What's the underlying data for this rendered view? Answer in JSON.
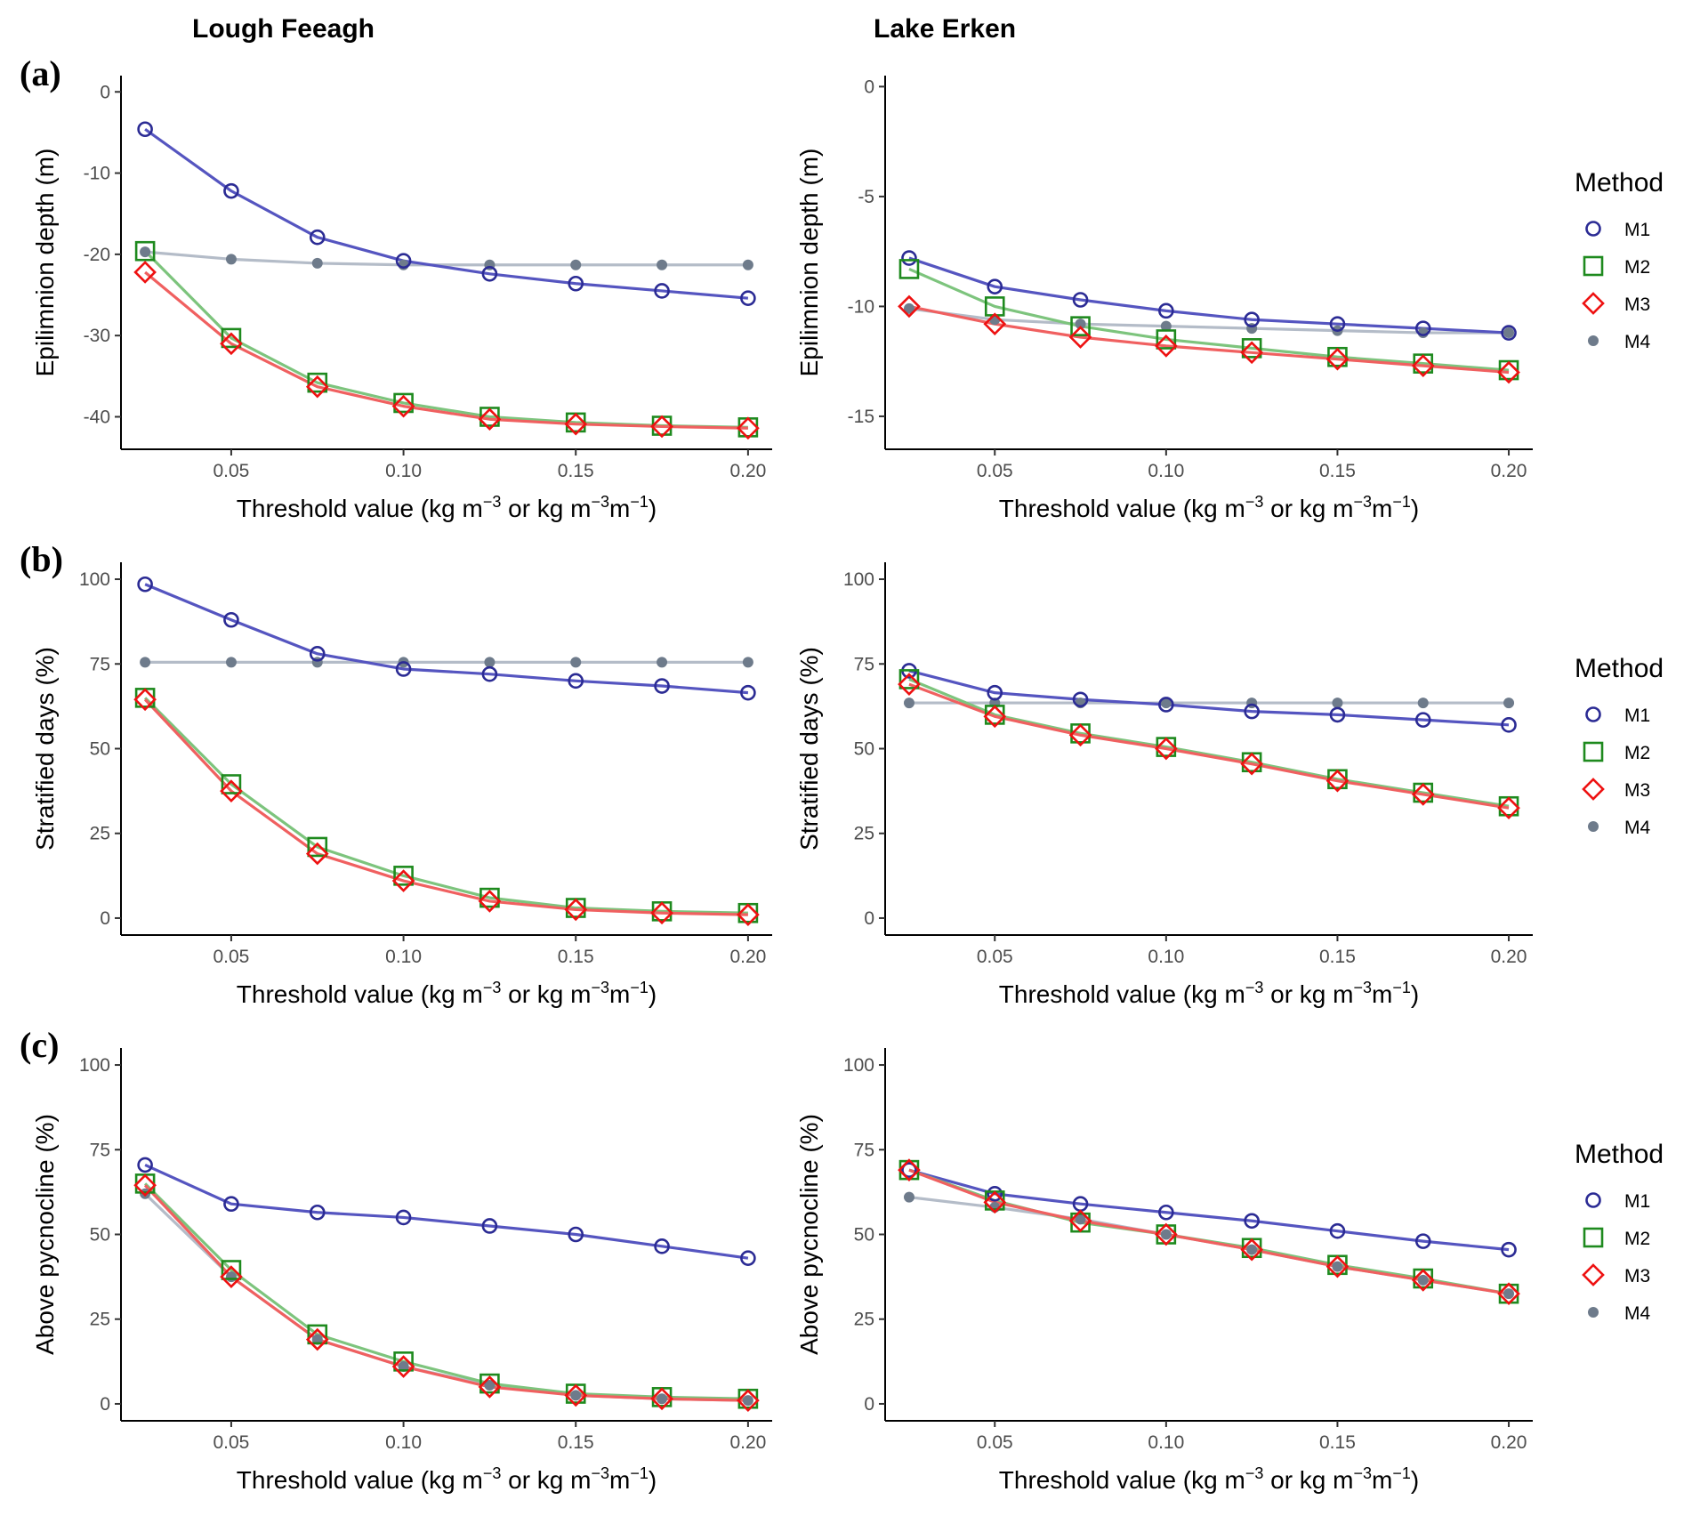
{
  "figure": {
    "column_titles": [
      "Lough Feeagh",
      "Lake Erken"
    ],
    "row_labels": [
      "(a)",
      "(b)",
      "(c)"
    ],
    "legend": {
      "title": "Method",
      "entries": [
        "M1",
        "M2",
        "M3",
        "M4"
      ]
    }
  },
  "colors": {
    "M1": "#2b2b94",
    "M1_line": "#5555c0",
    "M2": "#1e8a1e",
    "M2_line": "#7dc47d",
    "M3": "#ee1111",
    "M3_line": "#f06060",
    "M4": "#6e7b8b",
    "M4_line": "#b4bcc8"
  },
  "chart_data": [
    {
      "id": "a-feeagh",
      "type": "line",
      "xlabel": "Threshold value (kg m⁻³ or kg m⁻³m⁻¹)",
      "xlabel_parts": [
        "Threshold value (kg m",
        "−3",
        " or kg m",
        "−3",
        "m",
        "−1",
        ")"
      ],
      "ylabel": "Epilimnion depth (m)",
      "xlim": [
        0.018,
        0.207
      ],
      "ylim": [
        -44,
        2
      ],
      "xticks": [
        0.05,
        0.1,
        0.15,
        0.2
      ],
      "xtick_labels": [
        "0.05",
        "0.10",
        "0.15",
        "0.20"
      ],
      "yticks": [
        0,
        -10,
        -20,
        -30,
        -40
      ],
      "ytick_labels": [
        "0",
        "-10",
        "-20",
        "-30",
        "-40"
      ],
      "x": [
        0.025,
        0.05,
        0.075,
        0.1,
        0.125,
        0.15,
        0.175,
        0.2
      ],
      "series": [
        {
          "name": "M1",
          "values": [
            -4.6,
            -12.2,
            -17.9,
            -20.8,
            -22.4,
            -23.6,
            -24.5,
            -25.4
          ]
        },
        {
          "name": "M2",
          "values": [
            -19.6,
            -30.3,
            -35.8,
            -38.3,
            -40.0,
            -40.7,
            -41.1,
            -41.3
          ]
        },
        {
          "name": "M3",
          "values": [
            -22.2,
            -31.0,
            -36.3,
            -38.7,
            -40.3,
            -40.9,
            -41.2,
            -41.4
          ]
        },
        {
          "name": "M4",
          "values": [
            -19.7,
            -20.6,
            -21.1,
            -21.3,
            -21.3,
            -21.3,
            -21.3,
            -21.3
          ]
        }
      ]
    },
    {
      "id": "a-erken",
      "type": "line",
      "xlabel": "Threshold value (kg m⁻³ or kg m⁻³m⁻¹)",
      "xlabel_parts": [
        "Threshold value (kg m",
        "−3",
        " or kg m",
        "−3",
        "m",
        "−1",
        ")"
      ],
      "ylabel": "Epilimnion depth (m)",
      "xlim": [
        0.018,
        0.207
      ],
      "ylim": [
        -16.5,
        0.5
      ],
      "xticks": [
        0.05,
        0.1,
        0.15,
        0.2
      ],
      "xtick_labels": [
        "0.05",
        "0.10",
        "0.15",
        "0.20"
      ],
      "yticks": [
        0,
        -5,
        -10,
        -15
      ],
      "ytick_labels": [
        "0",
        "-5",
        "-10",
        "-15"
      ],
      "x": [
        0.025,
        0.05,
        0.075,
        0.1,
        0.125,
        0.15,
        0.175,
        0.2
      ],
      "series": [
        {
          "name": "M1",
          "values": [
            -7.8,
            -9.1,
            -9.7,
            -10.2,
            -10.6,
            -10.8,
            -11.0,
            -11.2
          ]
        },
        {
          "name": "M2",
          "values": [
            -8.3,
            -10.0,
            -10.9,
            -11.5,
            -11.9,
            -12.3,
            -12.6,
            -12.9
          ]
        },
        {
          "name": "M3",
          "values": [
            -10.0,
            -10.8,
            -11.4,
            -11.8,
            -12.1,
            -12.4,
            -12.7,
            -13.0
          ]
        },
        {
          "name": "M4",
          "values": [
            -10.1,
            -10.6,
            -10.8,
            -10.9,
            -11.0,
            -11.1,
            -11.2,
            -11.2
          ]
        }
      ]
    },
    {
      "id": "b-feeagh",
      "type": "line",
      "xlabel": "Threshold value (kg m⁻³ or kg m⁻³m⁻¹)",
      "xlabel_parts": [
        "Threshold value (kg m",
        "−3",
        " or kg m",
        "−3",
        "m",
        "−1",
        ")"
      ],
      "ylabel": "Stratified days (%)",
      "xlim": [
        0.018,
        0.207
      ],
      "ylim": [
        -5,
        105
      ],
      "xticks": [
        0.05,
        0.1,
        0.15,
        0.2
      ],
      "xtick_labels": [
        "0.05",
        "0.10",
        "0.15",
        "0.20"
      ],
      "yticks": [
        0,
        25,
        50,
        75,
        100
      ],
      "ytick_labels": [
        "0",
        "25",
        "50",
        "75",
        "100"
      ],
      "x": [
        0.025,
        0.05,
        0.075,
        0.1,
        0.125,
        0.15,
        0.175,
        0.2
      ],
      "series": [
        {
          "name": "M1",
          "values": [
            98.5,
            88.0,
            78.0,
            73.5,
            72.0,
            70.0,
            68.5,
            66.5
          ]
        },
        {
          "name": "M2",
          "values": [
            65.0,
            39.5,
            21.0,
            12.5,
            6.0,
            3.0,
            2.0,
            1.5
          ]
        },
        {
          "name": "M3",
          "values": [
            64.5,
            37.5,
            19.0,
            11.0,
            5.0,
            2.5,
            1.5,
            1.0
          ]
        },
        {
          "name": "M4",
          "values": [
            75.5,
            75.5,
            75.5,
            75.5,
            75.5,
            75.5,
            75.5,
            75.5
          ]
        }
      ]
    },
    {
      "id": "b-erken",
      "type": "line",
      "xlabel": "Threshold value (kg m⁻³ or kg m⁻³m⁻¹)",
      "xlabel_parts": [
        "Threshold value (kg m",
        "−3",
        " or kg m",
        "−3",
        "m",
        "−1",
        ")"
      ],
      "ylabel": "Stratified days (%)",
      "xlim": [
        0.018,
        0.207
      ],
      "ylim": [
        -5,
        105
      ],
      "xticks": [
        0.05,
        0.1,
        0.15,
        0.2
      ],
      "xtick_labels": [
        "0.05",
        "0.10",
        "0.15",
        "0.20"
      ],
      "yticks": [
        0,
        25,
        50,
        75,
        100
      ],
      "ytick_labels": [
        "0",
        "25",
        "50",
        "75",
        "100"
      ],
      "x": [
        0.025,
        0.05,
        0.075,
        0.1,
        0.125,
        0.15,
        0.175,
        0.2
      ],
      "series": [
        {
          "name": "M1",
          "values": [
            73.0,
            66.5,
            64.5,
            63.0,
            61.0,
            60.0,
            58.5,
            57.0
          ]
        },
        {
          "name": "M2",
          "values": [
            70.5,
            60.0,
            54.5,
            50.5,
            46.0,
            41.0,
            37.0,
            33.0
          ]
        },
        {
          "name": "M3",
          "values": [
            69.0,
            59.5,
            54.0,
            50.0,
            45.5,
            40.5,
            36.5,
            32.5
          ]
        },
        {
          "name": "M4",
          "values": [
            63.5,
            63.5,
            63.5,
            63.5,
            63.5,
            63.5,
            63.5,
            63.5
          ]
        }
      ]
    },
    {
      "id": "c-feeagh",
      "type": "line",
      "xlabel": "Threshold value (kg m⁻³ or kg m⁻³m⁻¹)",
      "xlabel_parts": [
        "Threshold value (kg m",
        "−3",
        " or kg m",
        "−3",
        "m",
        "−1",
        ")"
      ],
      "ylabel": "Above pycnocline (%)",
      "xlim": [
        0.018,
        0.207
      ],
      "ylim": [
        -5,
        105
      ],
      "xticks": [
        0.05,
        0.1,
        0.15,
        0.2
      ],
      "xtick_labels": [
        "0.05",
        "0.10",
        "0.15",
        "0.20"
      ],
      "yticks": [
        0,
        25,
        50,
        75,
        100
      ],
      "ytick_labels": [
        "0",
        "25",
        "50",
        "75",
        "100"
      ],
      "x": [
        0.025,
        0.05,
        0.075,
        0.1,
        0.125,
        0.15,
        0.175,
        0.2
      ],
      "series": [
        {
          "name": "M1",
          "values": [
            70.5,
            59.0,
            56.5,
            55.0,
            52.5,
            50.0,
            46.5,
            43.0
          ]
        },
        {
          "name": "M2",
          "values": [
            65.0,
            39.5,
            20.5,
            12.5,
            6.0,
            3.0,
            2.0,
            1.5
          ]
        },
        {
          "name": "M3",
          "values": [
            64.5,
            37.5,
            19.0,
            11.0,
            5.0,
            2.5,
            1.5,
            1.0
          ]
        },
        {
          "name": "M4",
          "values": [
            62.0,
            37.5,
            19.0,
            11.0,
            5.5,
            2.5,
            1.5,
            1.0
          ]
        }
      ]
    },
    {
      "id": "c-erken",
      "type": "line",
      "xlabel": "Threshold value (kg m⁻³ or kg m⁻³m⁻¹)",
      "xlabel_parts": [
        "Threshold value (kg m",
        "−3",
        " or kg m",
        "−3",
        "m",
        "−1",
        ")"
      ],
      "ylabel": "Above pycnocline (%)",
      "xlim": [
        0.018,
        0.207
      ],
      "ylim": [
        -5,
        105
      ],
      "xticks": [
        0.05,
        0.1,
        0.15,
        0.2
      ],
      "xtick_labels": [
        "0.05",
        "0.10",
        "0.15",
        "0.20"
      ],
      "yticks": [
        0,
        25,
        50,
        75,
        100
      ],
      "ytick_labels": [
        "0",
        "25",
        "50",
        "75",
        "100"
      ],
      "x": [
        0.025,
        0.05,
        0.075,
        0.1,
        0.125,
        0.15,
        0.175,
        0.2
      ],
      "series": [
        {
          "name": "M1",
          "values": [
            69.0,
            62.0,
            59.0,
            56.5,
            54.0,
            51.0,
            48.0,
            45.5
          ]
        },
        {
          "name": "M2",
          "values": [
            69.0,
            60.0,
            53.5,
            50.0,
            46.0,
            41.0,
            37.0,
            32.5
          ]
        },
        {
          "name": "M3",
          "values": [
            69.0,
            59.5,
            54.0,
            50.0,
            45.5,
            40.5,
            36.5,
            32.5
          ]
        },
        {
          "name": "M4",
          "values": [
            61.0,
            58.0,
            54.5,
            50.0,
            45.5,
            40.5,
            36.5,
            32.5
          ]
        }
      ]
    }
  ]
}
